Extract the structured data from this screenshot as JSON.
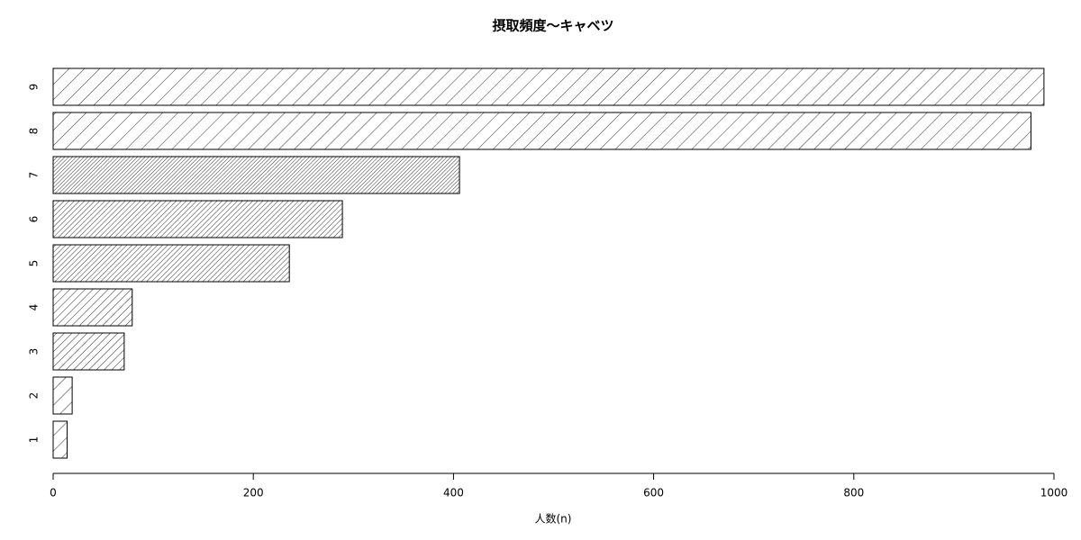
{
  "chart_data": {
    "type": "barh",
    "title": "摂取頻度〜キャベツ",
    "x_label": "人数(n)",
    "categories": [
      "1",
      "2",
      "3",
      "4",
      "5",
      "6",
      "7",
      "8",
      "9"
    ],
    "values": [
      14,
      19,
      71,
      79,
      236,
      289,
      406,
      977,
      990
    ],
    "density": [
      10,
      10,
      20,
      20,
      30,
      30,
      40,
      10,
      10
    ],
    "color": "#000000",
    "xlim": [
      0,
      1000
    ],
    "xticks": [
      0,
      200,
      400,
      600,
      800,
      1000
    ]
  }
}
